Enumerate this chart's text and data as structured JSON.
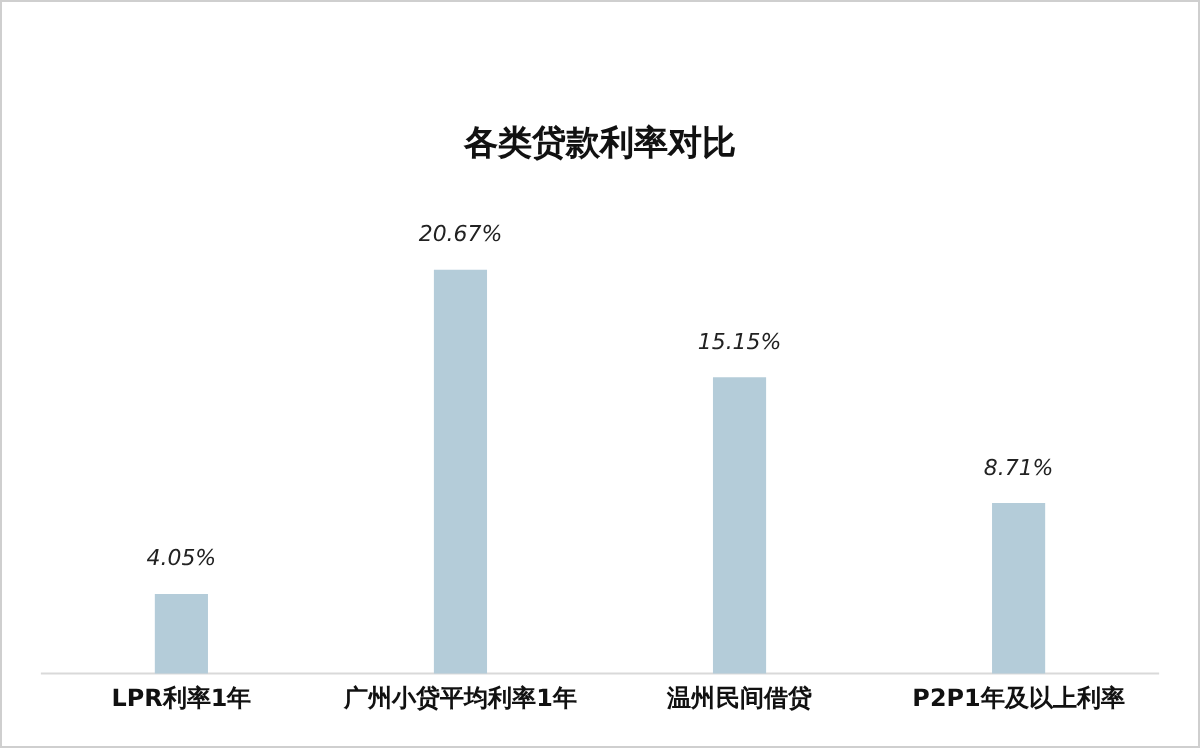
{
  "chart_data": {
    "type": "bar",
    "title": "各类贷款利率对比",
    "categories": [
      "LPR利率1年",
      "广州小贷平均利率1年",
      "温州民间借贷",
      "P2P1年及以上利率"
    ],
    "values": [
      4.05,
      20.67,
      15.15,
      8.71
    ],
    "value_labels": [
      "4.05%",
      "20.67%",
      "15.15%",
      "8.71%"
    ],
    "color": "#b4ccd9",
    "grid": false,
    "legend": false
  }
}
